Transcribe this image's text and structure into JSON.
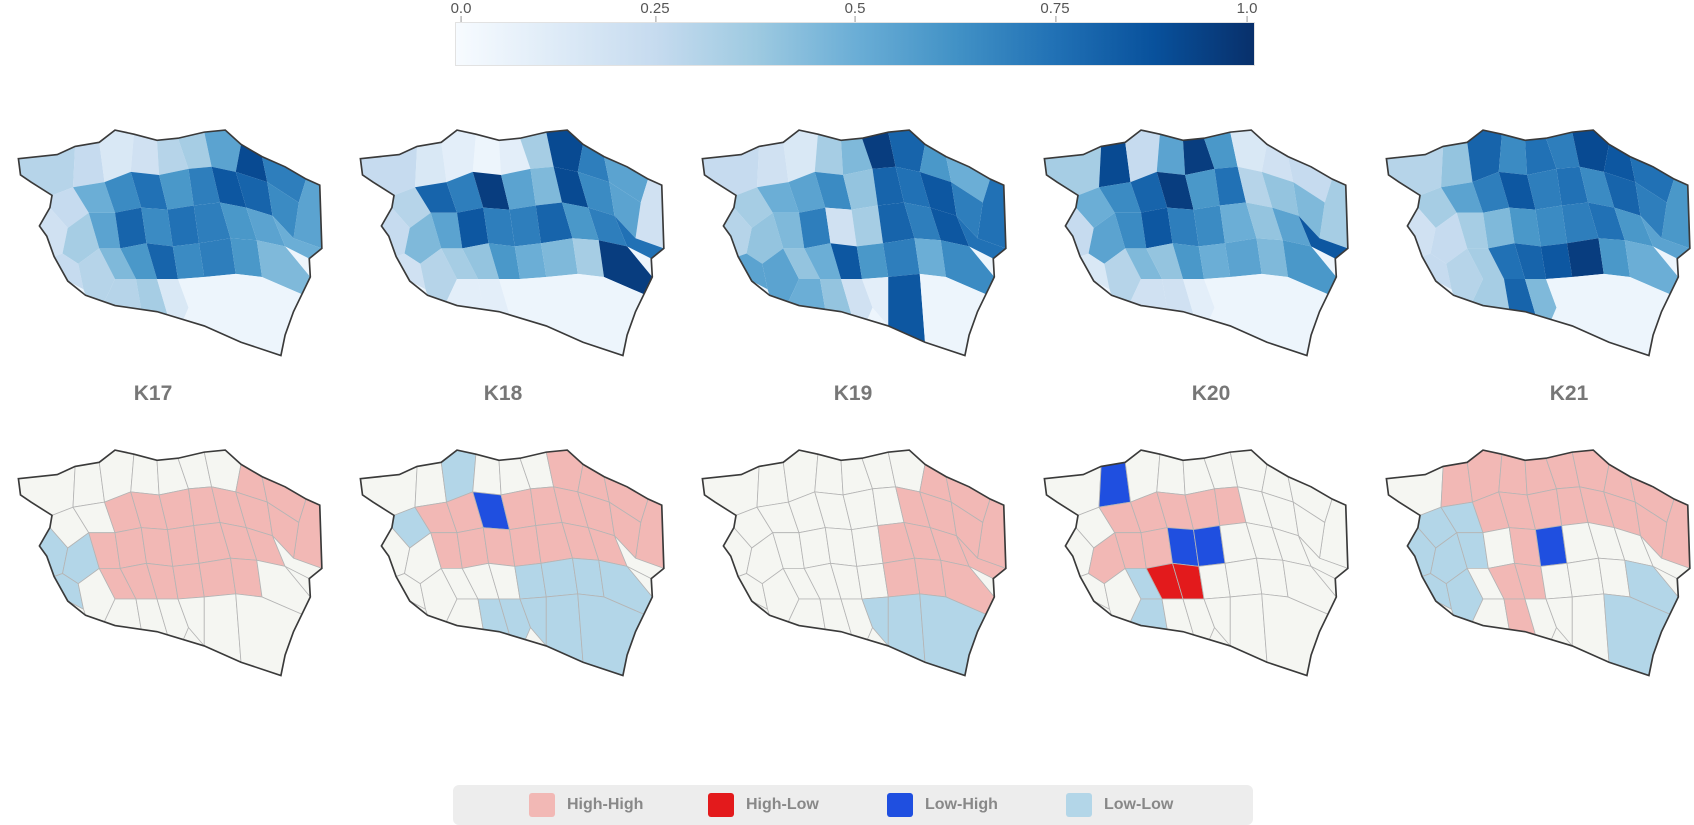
{
  "colorbar": {
    "ticks": [
      "0.0",
      "0.25",
      "0.5",
      "0.75",
      "1.0"
    ],
    "tick_values": [
      0.0,
      0.25,
      0.5,
      0.75,
      1.0
    ],
    "range": [
      0.0,
      1.0
    ],
    "colors": [
      "#f7fbff",
      "#deebf7",
      "#c6dbef",
      "#9ecae1",
      "#6baed6",
      "#4292c6",
      "#2171b5",
      "#08519c",
      "#08306b"
    ]
  },
  "periods": [
    "K17",
    "K18",
    "K19",
    "K20",
    "K21"
  ],
  "legend": {
    "items": [
      {
        "key": "high_high",
        "label": "High-High",
        "color": "#f2b8b5"
      },
      {
        "key": "high_low",
        "label": "High-Low",
        "color": "#e31a1c"
      },
      {
        "key": "low_high",
        "label": "Low-High",
        "color": "#1f4fe0"
      },
      {
        "key": "low_low",
        "label": "Low-Low",
        "color": "#b3d6e8"
      }
    ]
  },
  "lisa_colors": {
    "not_significant": "#f5f6f2",
    "boundary": "#b5b5b5",
    "outline": "#3a3a3a"
  }
}
